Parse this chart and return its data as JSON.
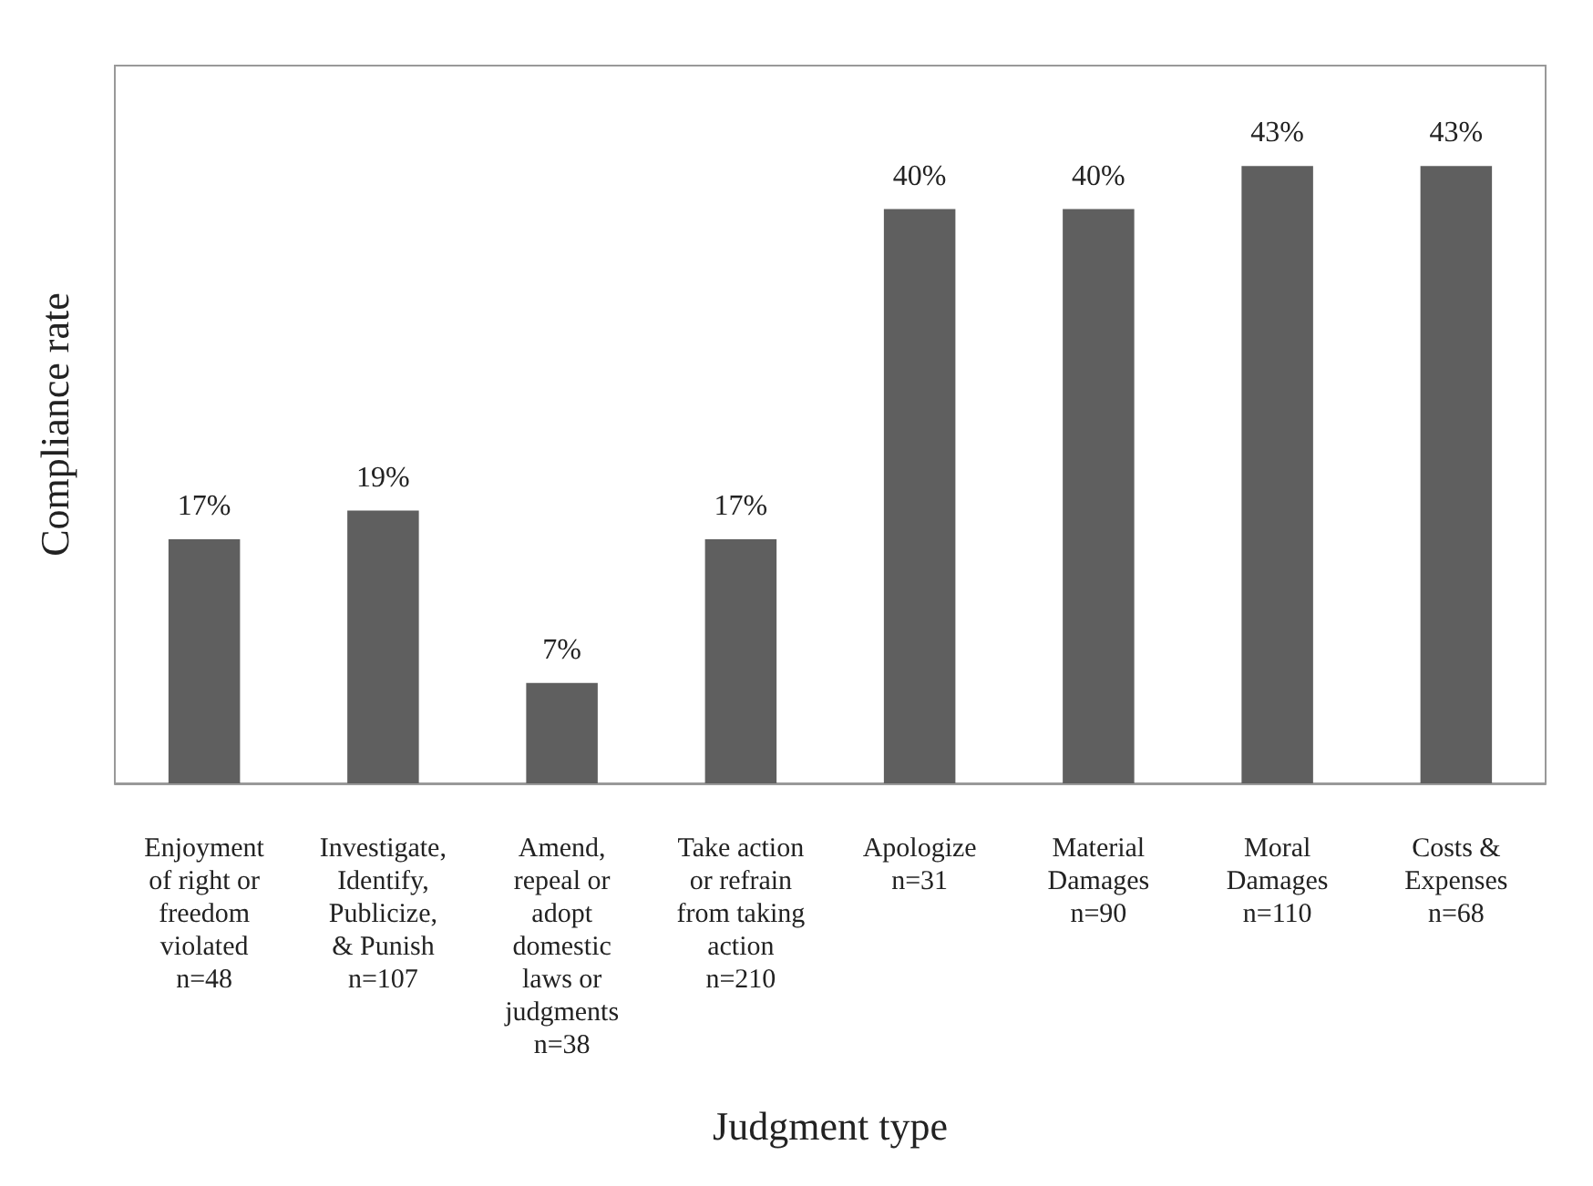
{
  "chart_data": {
    "type": "bar",
    "xlabel": "Judgment type",
    "ylabel": "Compliance rate",
    "categories": [
      "Enjoyment\nof right or\nfreedom\nviolated\nn=48",
      "Investigate,\nIdentify,\nPublicize,\n& Punish\nn=107",
      "Amend,\nrepeal or\nadopt\ndomestic\nlaws or\njudgments\nn=38",
      "Take action\nor refrain\nfrom taking\naction\nn=210",
      "Apologize\nn=31",
      "Material\nDamages\nn=90",
      "Moral\nDamages\nn=110",
      "Costs &\nExpenses\nn=68"
    ],
    "values": [
      17,
      19,
      7,
      17,
      40,
      40,
      43,
      43
    ],
    "value_labels": [
      "17%",
      "19%",
      "7%",
      "17%",
      "40%",
      "40%",
      "43%",
      "43%"
    ],
    "color": "#5f5f5f",
    "ylim": [
      0,
      50
    ]
  }
}
